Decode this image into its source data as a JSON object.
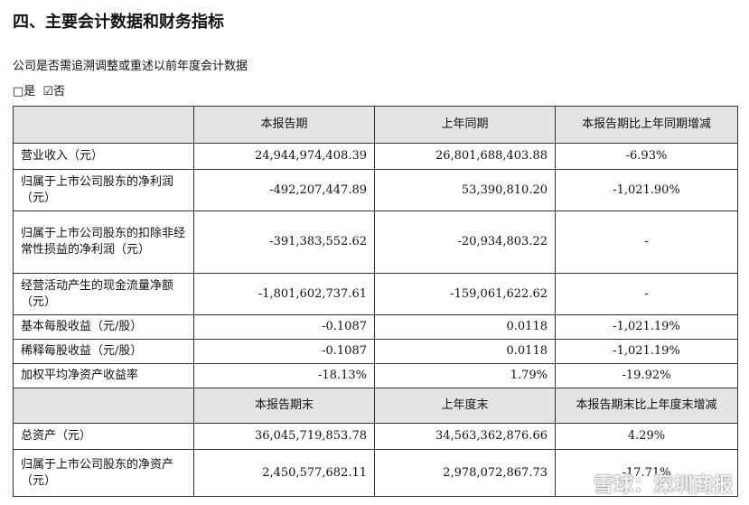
{
  "header": {
    "title": "四、主要会计数据和财务指标",
    "question": "公司是否需追溯调整或重述以前年度会计数据",
    "options": [
      "□是",
      "☑否"
    ]
  },
  "table": {
    "sections": [
      {
        "columns": [
          "本报告期",
          "上年同期",
          "本报告期比上年同期增减"
        ],
        "rows": [
          [
            "营业收入（元）",
            "24,944,974,408.39",
            "26,801,688,403.88",
            "-6.93%"
          ],
          [
            "归属于上市公司股东的净利润（元）",
            "-492,207,447.89",
            "53,390,810.20",
            "-1,021.90%"
          ],
          [
            "归属于上市公司股东的扣除非经常性损益的净利润（元）",
            "-391,383,552.62",
            "-20,934,803.22",
            "-"
          ],
          [
            "经营活动产生的现金流量净额（元）",
            "-1,801,602,737.61",
            "-159,061,622.62",
            "-"
          ],
          [
            "基本每股收益（元/股）",
            "-0.1087",
            "0.0118",
            "-1,021.19%"
          ],
          [
            "稀释每股收益（元/股）",
            "-0.1087",
            "0.0118",
            "-1,021.19%"
          ],
          [
            "加权平均净资产收益率",
            "-18.13%",
            "1.79%",
            "-19.92%"
          ]
        ]
      },
      {
        "columns": [
          "本报告期末",
          "上年度末",
          "本报告期末比上年度末增减"
        ],
        "rows": [
          [
            "总资产（元）",
            "36,045,719,853.78",
            "34,563,362,876.66",
            "4.29%"
          ],
          [
            "归属于上市公司股东的净资产（元）",
            "2,450,577,682.11",
            "2,978,072,867.73",
            "-17.71%"
          ]
        ]
      }
    ]
  },
  "watermark": "雪球：深圳商报"
}
